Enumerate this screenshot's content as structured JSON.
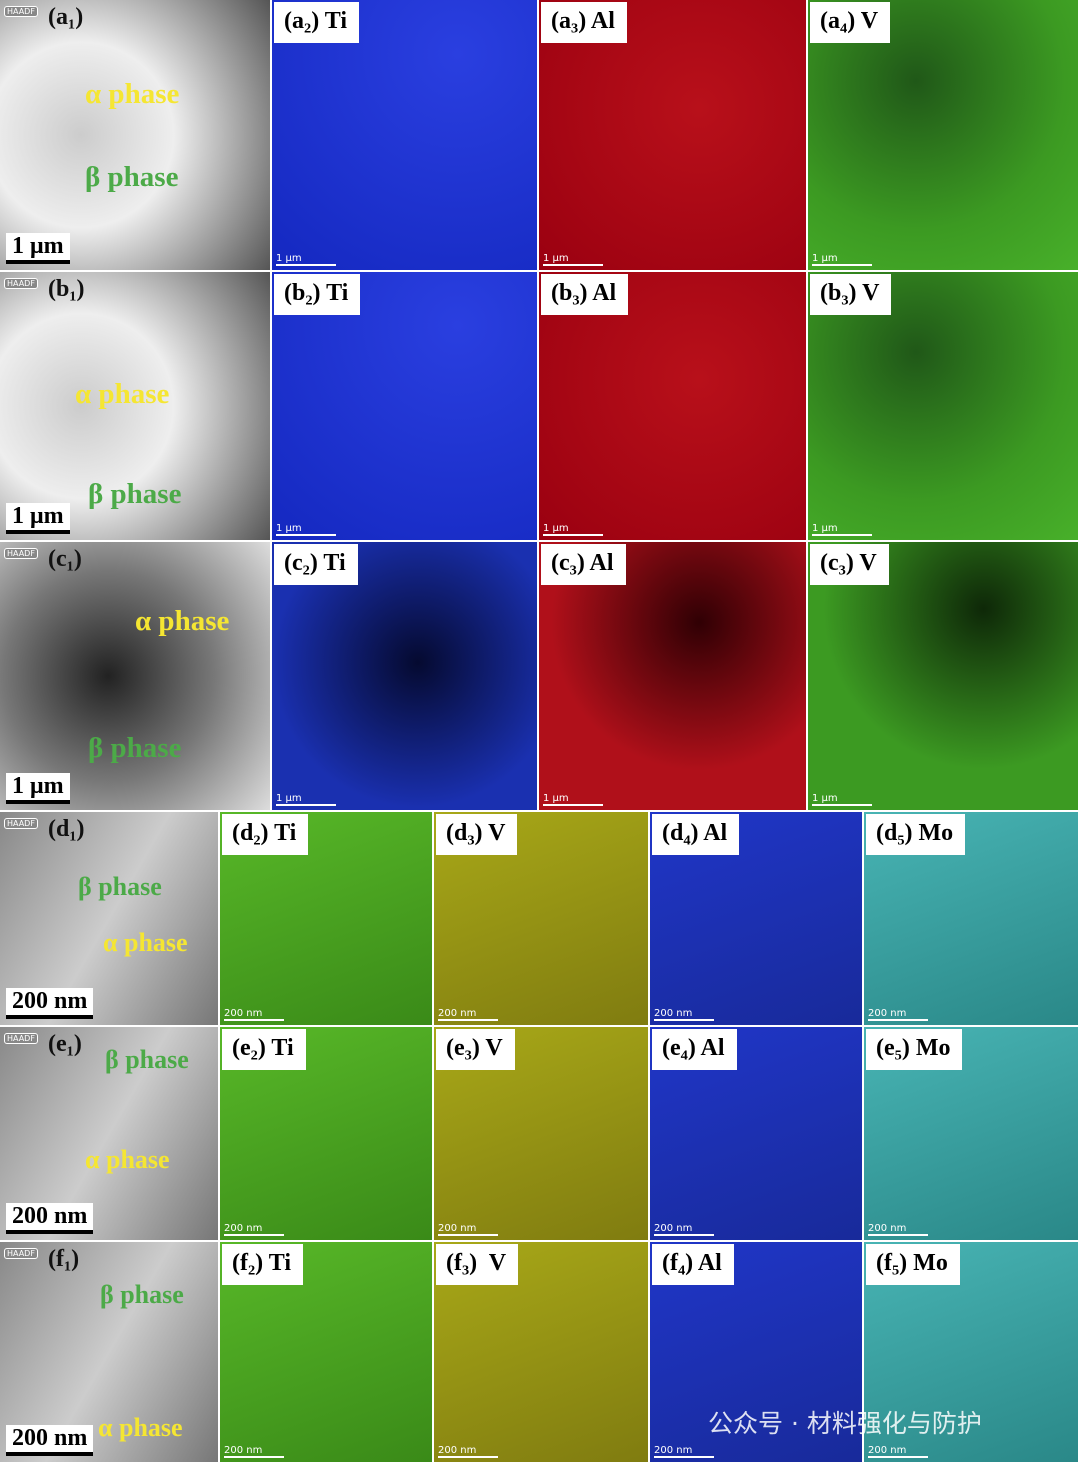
{
  "rows": [
    {
      "panels": [
        {
          "tag": "HAADF",
          "label": "(a₁)",
          "scale": "1 μm",
          "annotations": [
            "α phase",
            "β phase"
          ]
        },
        {
          "label": "(a₂) Ti",
          "scale": "1 μm"
        },
        {
          "label": "(a₃) Al",
          "scale": "1 μm"
        },
        {
          "label": "(a₄) V",
          "scale": "1 μm"
        }
      ]
    },
    {
      "panels": [
        {
          "tag": "HAADF",
          "label": "(b₁)",
          "scale": "1 μm",
          "annotations": [
            "α phase",
            "β phase"
          ]
        },
        {
          "label": "(b₂) Ti",
          "scale": "1 μm"
        },
        {
          "label": "(b₃) Al",
          "scale": "1 μm"
        },
        {
          "label": "(b₃) V",
          "scale": "1 μm"
        }
      ]
    },
    {
      "panels": [
        {
          "tag": "HAADF",
          "label": "(c₁)",
          "scale": "1 μm",
          "annotations": [
            "α phase",
            "β phase"
          ]
        },
        {
          "label": "(c₂) Ti",
          "scale": "1 μm"
        },
        {
          "label": "(c₃) Al",
          "scale": "1 μm"
        },
        {
          "label": "(c₃) V",
          "scale": "1 μm"
        }
      ]
    },
    {
      "panels": [
        {
          "tag": "HAADF",
          "label": "(d₁)",
          "scale": "200 nm",
          "annotations": [
            "α phase",
            "β phase"
          ]
        },
        {
          "label": "(d₂) Ti",
          "scale": "200 nm"
        },
        {
          "label": "(d₃) V",
          "scale": "200 nm"
        },
        {
          "label": "(d₄) Al",
          "scale": "200 nm"
        },
        {
          "label": "(d₅) Mo",
          "scale": "200 nm"
        }
      ]
    },
    {
      "panels": [
        {
          "tag": "HAADF",
          "label": "(e₁)",
          "scale": "200 nm",
          "annotations": [
            "α phase",
            "β phase"
          ]
        },
        {
          "label": "(e₂) Ti",
          "scale": "200 nm"
        },
        {
          "label": "(e₃) V",
          "scale": "200 nm"
        },
        {
          "label": "(e₄) Al",
          "scale": "200 nm"
        },
        {
          "label": "(e₅) Mo",
          "scale": "200 nm"
        }
      ]
    },
    {
      "panels": [
        {
          "tag": "HAADF",
          "label": "(f₁)",
          "scale": "200 nm",
          "annotations": [
            "α phase",
            "β phase"
          ]
        },
        {
          "label": "(f₂) Ti",
          "scale": "200 nm"
        },
        {
          "label": "(f₃)  V",
          "scale": "200 nm"
        },
        {
          "label": "(f₄) Al",
          "scale": "200 nm"
        },
        {
          "label": "(f₅) Mo",
          "scale": "200 nm"
        }
      ]
    }
  ],
  "watermark": "公众号 · 材料强化与防护"
}
